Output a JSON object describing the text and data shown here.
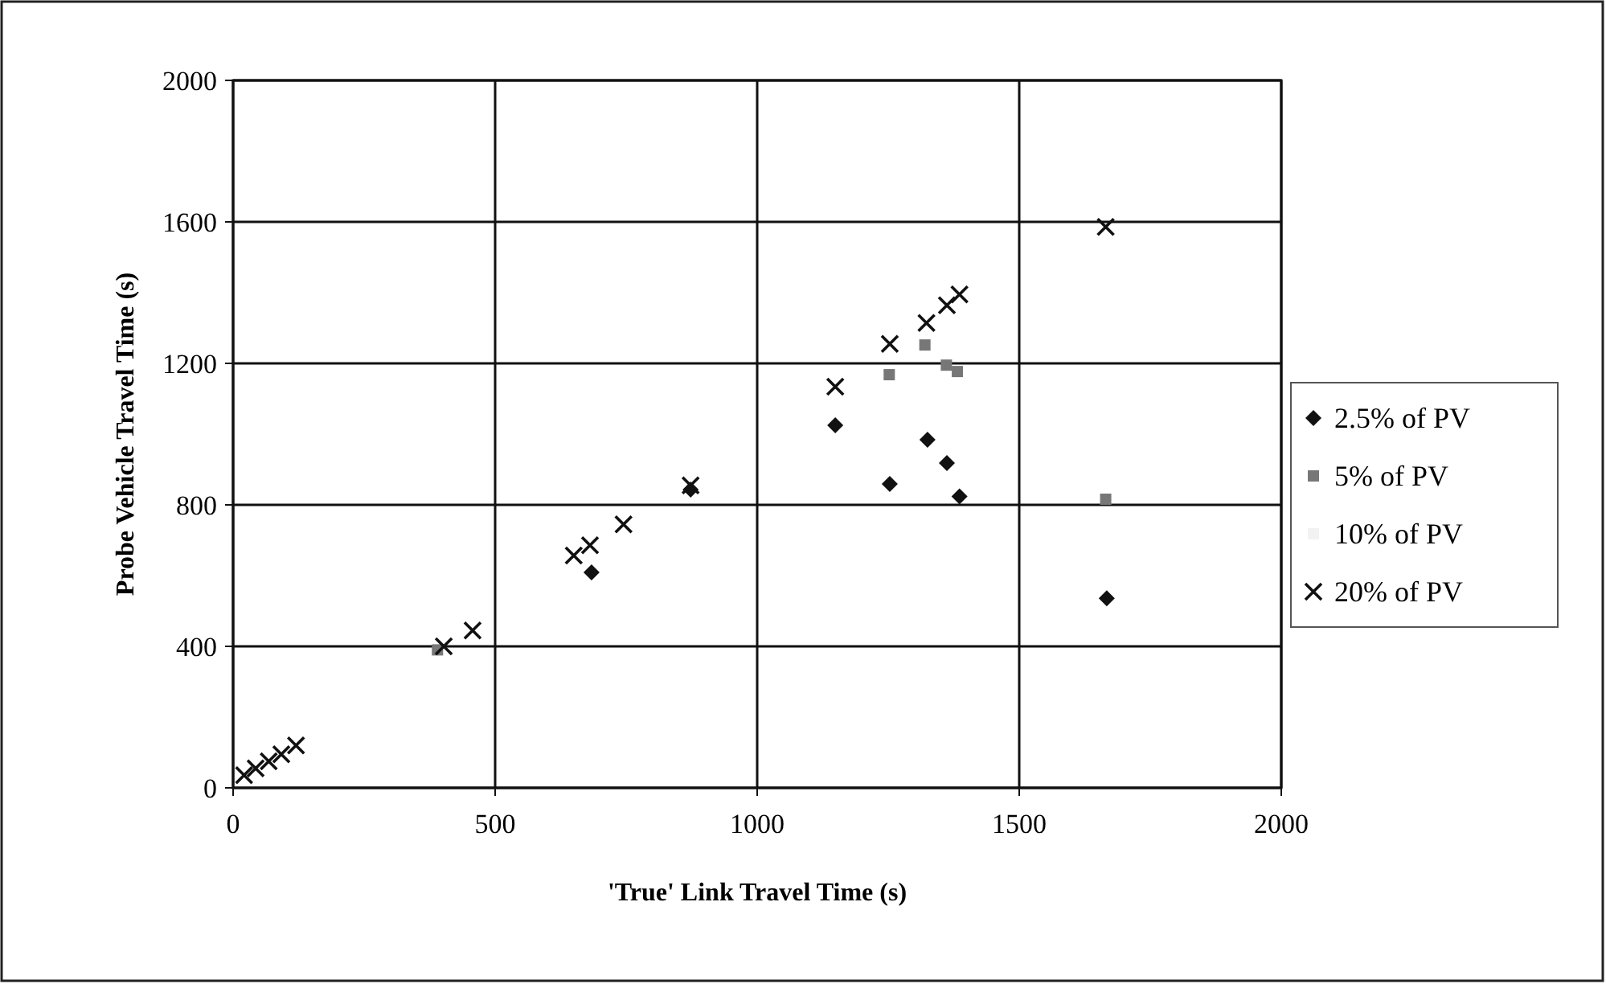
{
  "chart_data": {
    "type": "scatter",
    "xlabel": "'True' Link Travel Time (s)",
    "ylabel": "Probe Vehicle Travel Time (s)",
    "xlim": [
      0,
      2000
    ],
    "xticks": [
      0,
      500,
      1000,
      1500,
      2000
    ],
    "ylim": [
      0,
      2000
    ],
    "yticks": [
      0,
      400,
      800,
      1200,
      1600,
      2000
    ],
    "grid": true,
    "legend": "right",
    "series": [
      {
        "name": "2.5% of PV",
        "color": "#111111",
        "marker": "diamond",
        "x": [
          684,
          873,
          1149,
          1253,
          1325,
          1362,
          1386,
          1667
        ],
        "values": [
          609,
          843,
          1025,
          859,
          984,
          918,
          824,
          536
        ]
      },
      {
        "name": "5% of PV",
        "color": "#777777",
        "marker": "square",
        "x": [
          390,
          650,
          1252,
          1320,
          1361,
          1382,
          1665
        ],
        "values": [
          390,
          null,
          1168,
          1252,
          1195,
          1177,
          816
        ]
      },
      {
        "name": "10% of PV",
        "color": "#f2f2f2",
        "marker": "none"
      },
      {
        "name": "20% of PV",
        "color": "#111111",
        "marker": "cross",
        "x": [
          21,
          43,
          68,
          92,
          120,
          402,
          457,
          650,
          681,
          745,
          873,
          1149,
          1253,
          1323,
          1362,
          1386,
          1665
        ],
        "values": [
          36,
          55,
          75,
          95,
          120,
          400,
          445,
          657,
          686,
          745,
          855,
          1134,
          1255,
          1314,
          1364,
          1395,
          1586
        ]
      }
    ]
  }
}
